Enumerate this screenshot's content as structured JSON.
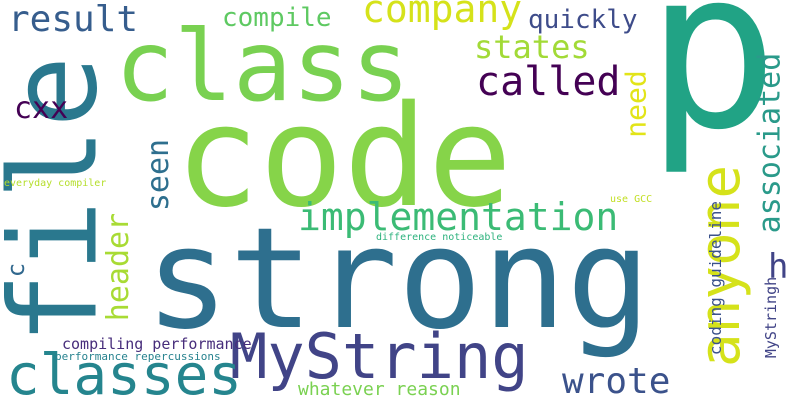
{
  "words": [
    {
      "text": "p",
      "color": "#21a385"
    },
    {
      "text": "code",
      "color": "#86d449"
    },
    {
      "text": "strong",
      "color": "#2e6f8e"
    },
    {
      "text": "class",
      "color": "#79d151"
    },
    {
      "text": "file",
      "color": "#2a788e"
    },
    {
      "text": "MyString",
      "color": "#414487"
    },
    {
      "text": "anyone",
      "color": "#d5e21a"
    },
    {
      "text": "classes",
      "color": "#25858e"
    },
    {
      "text": "implementation",
      "color": "#3bbb75"
    },
    {
      "text": "company",
      "color": "#d5e21a"
    },
    {
      "text": "called",
      "color": "#440154"
    },
    {
      "text": "associated",
      "color": "#2a9a8a"
    },
    {
      "text": "result",
      "color": "#365d8d"
    },
    {
      "text": "states",
      "color": "#a2da37"
    },
    {
      "text": "compile",
      "color": "#5ec962"
    },
    {
      "text": "quickly",
      "color": "#3e4c8a"
    },
    {
      "text": "wrote",
      "color": "#3b528b"
    },
    {
      "text": "header",
      "color": "#a8db34"
    },
    {
      "text": "seen",
      "color": "#2e6f8e"
    },
    {
      "text": "need",
      "color": "#e2e418"
    },
    {
      "text": "cxx",
      "color": "#440154"
    },
    {
      "text": "c",
      "color": "#31688e"
    },
    {
      "text": "MyStringh",
      "color": "#414487"
    },
    {
      "text": "h",
      "color": "#414487"
    },
    {
      "text": "coding guideline",
      "color": "#3b528b"
    },
    {
      "text": "compiling performance",
      "color": "#472d7b"
    },
    {
      "text": "whatever reason",
      "color": "#7ad151"
    },
    {
      "text": "performance repercussions",
      "color": "#26828e"
    },
    {
      "text": "everyday compiler",
      "color": "#b5de2b"
    },
    {
      "text": "use GCC",
      "color": "#c2df23"
    },
    {
      "text": "difference noticeable",
      "color": "#2db27d"
    }
  ]
}
